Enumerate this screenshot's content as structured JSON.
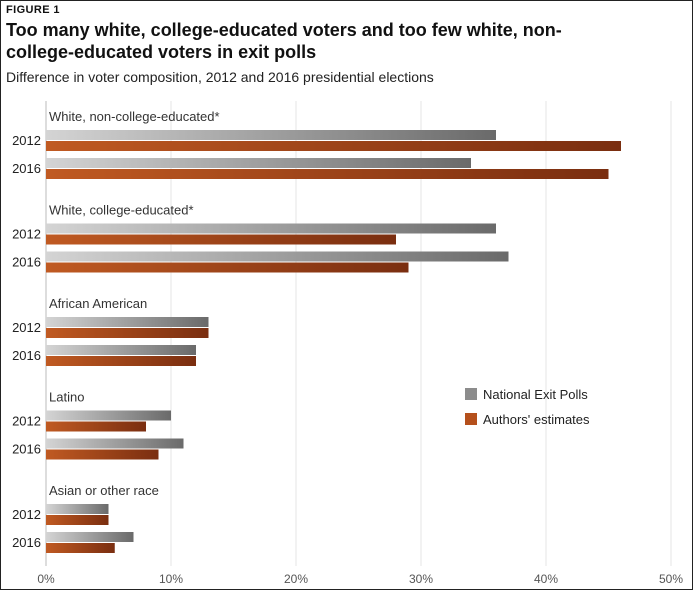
{
  "figure_label": "FIGURE 1",
  "title": "Too many white, college-educated voters and too few white, non-college-educated voters in exit polls",
  "subtitle": "Difference in voter composition, 2012 and 2016 presidential elections",
  "chart_data": {
    "type": "bar",
    "orientation": "horizontal",
    "groups": [
      {
        "name": "White, non-college-educated*",
        "years": [
          "2012",
          "2016"
        ],
        "exit_polls": [
          36,
          34
        ],
        "authors": [
          46,
          45
        ]
      },
      {
        "name": "White, college-educated*",
        "years": [
          "2012",
          "2016"
        ],
        "exit_polls": [
          36,
          37
        ],
        "authors": [
          28,
          29
        ]
      },
      {
        "name": "African American",
        "years": [
          "2012",
          "2016"
        ],
        "exit_polls": [
          13,
          12
        ],
        "authors": [
          13,
          12
        ]
      },
      {
        "name": "Latino",
        "years": [
          "2012",
          "2016"
        ],
        "exit_polls": [
          10,
          11
        ],
        "authors": [
          8,
          9
        ]
      },
      {
        "name": "Asian or other race",
        "years": [
          "2012",
          "2016"
        ],
        "exit_polls": [
          5,
          7
        ],
        "authors": [
          5,
          5.5
        ]
      }
    ],
    "xlim": [
      0,
      50
    ],
    "ticks": [
      0,
      10,
      20,
      30,
      40,
      50
    ],
    "tick_labels": [
      "0%",
      "10%",
      "20%",
      "30%",
      "40%",
      "50%"
    ],
    "grid": true,
    "legend": {
      "placement": "right",
      "entries": [
        "National Exit Polls",
        "Authors' estimates"
      ]
    },
    "colors": {
      "exit_polls": "#8c8c8c",
      "authors": "#b5501c"
    }
  }
}
